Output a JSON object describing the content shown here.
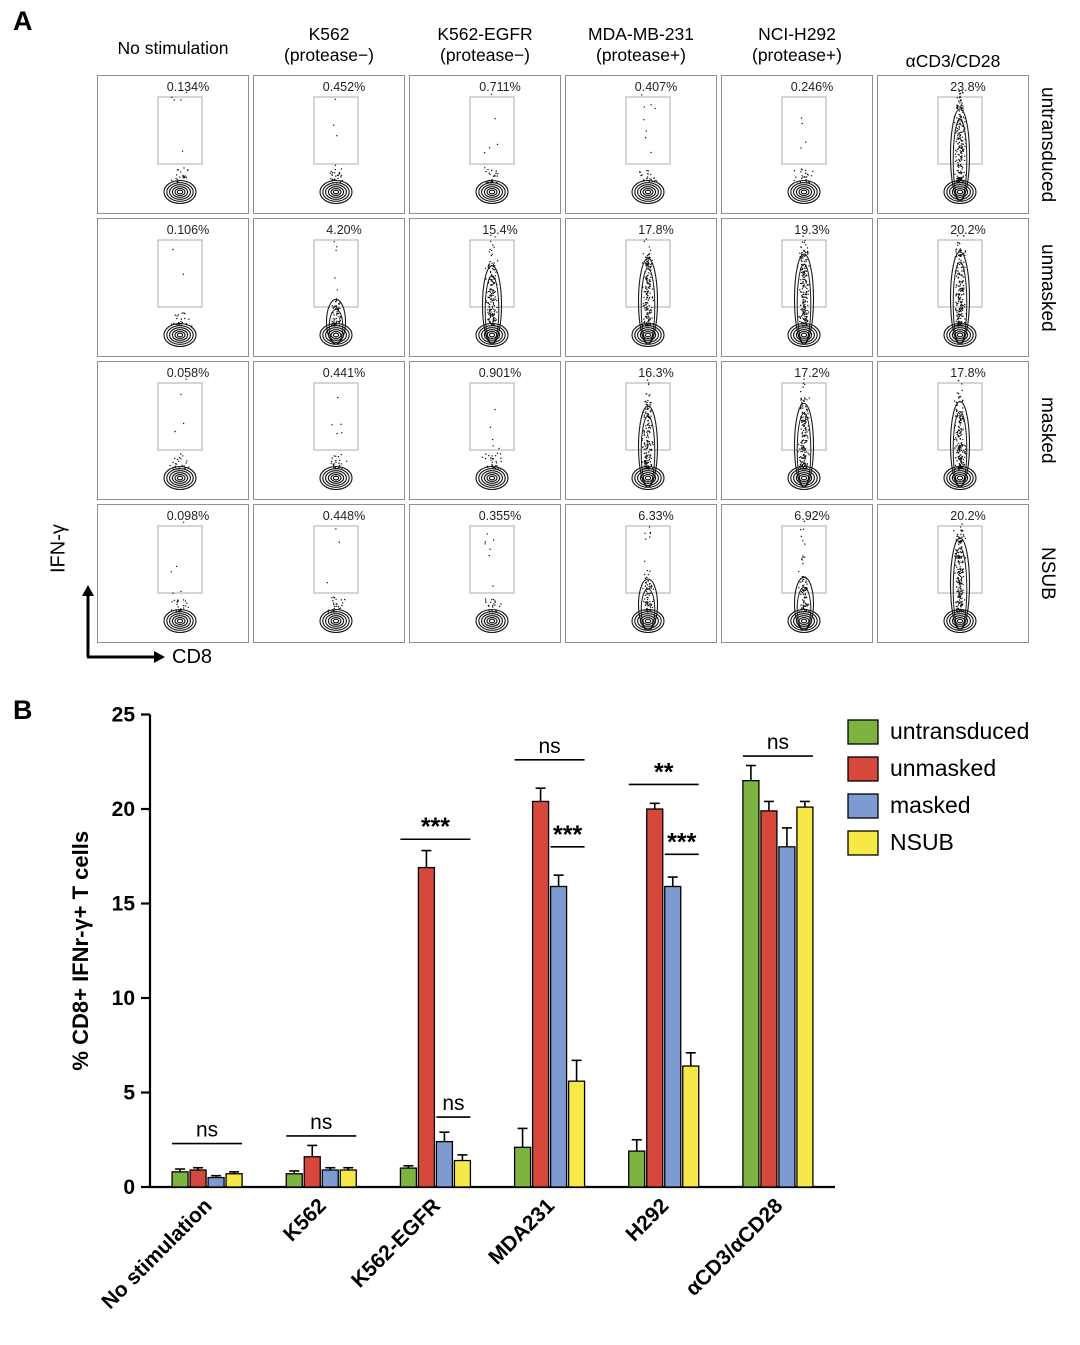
{
  "panel_a": {
    "label": "A",
    "y_axis_label": "IFN-γ",
    "x_axis_label": "CD8",
    "columns": [
      {
        "lines": [
          "No stimulation"
        ],
        "valign": "center"
      },
      {
        "lines": [
          "K562",
          "(protease−)"
        ],
        "valign": "top"
      },
      {
        "lines": [
          "K562-EGFR",
          "(protease−)"
        ],
        "valign": "top"
      },
      {
        "lines": [
          "MDA-MB-231",
          "(protease+)"
        ],
        "valign": "top"
      },
      {
        "lines": [
          "NCI-H292",
          "(protease+)"
        ],
        "valign": "top"
      },
      {
        "lines": [
          "αCD3/CD28"
        ],
        "valign": "bottom"
      }
    ],
    "rows": [
      "untransduced",
      "unmasked",
      "masked",
      "NSUB"
    ],
    "gate_percentages": [
      [
        "0.134%",
        "0.452%",
        "0.711%",
        "0.407%",
        "0.246%",
        "23.8%"
      ],
      [
        "0.106%",
        "4.20%",
        "15.4%",
        "17.8%",
        "19.3%",
        "20.2%"
      ],
      [
        "0.058%",
        "0.441%",
        "0.901%",
        "16.3%",
        "17.2%",
        "17.8%"
      ],
      [
        "0.098%",
        "0.448%",
        "0.355%",
        "6.33%",
        "6.92%",
        "20.2%"
      ]
    ]
  },
  "panel_b": {
    "label": "B"
  },
  "chart_data": {
    "type": "bar",
    "title": "",
    "xlabel": "",
    "ylabel": "% CD8+ IFNr-γ+ T cells",
    "ylim": [
      0,
      25
    ],
    "yticks": [
      0,
      5,
      10,
      15,
      20,
      25
    ],
    "grid": false,
    "legend_position": "top-right",
    "categories": [
      "No stimulation",
      "K562",
      "K562-EGFR",
      "MDA231",
      "H292",
      "αCD3/αCD28"
    ],
    "series": [
      {
        "name": "untransduced",
        "color": "#7db440",
        "values": [
          0.8,
          0.7,
          1.0,
          2.1,
          1.9,
          21.5
        ],
        "errors": [
          0.15,
          0.15,
          0.12,
          1.0,
          0.6,
          0.8
        ]
      },
      {
        "name": "unmasked",
        "color": "#d5483b",
        "values": [
          0.9,
          1.6,
          16.9,
          20.4,
          20.0,
          19.9
        ],
        "errors": [
          0.12,
          0.6,
          0.9,
          0.7,
          0.3,
          0.5
        ]
      },
      {
        "name": "masked",
        "color": "#7d9bd1",
        "values": [
          0.5,
          0.9,
          2.4,
          15.9,
          15.9,
          18.0
        ],
        "errors": [
          0.1,
          0.12,
          0.5,
          0.6,
          0.5,
          1.0
        ]
      },
      {
        "name": "NSUB",
        "color": "#f6e947",
        "values": [
          0.7,
          0.9,
          1.4,
          5.6,
          6.4,
          20.1
        ],
        "errors": [
          0.1,
          0.12,
          0.3,
          1.1,
          0.7,
          0.3
        ]
      }
    ],
    "annotations": [
      {
        "cat": 0,
        "from": 0,
        "to": 3,
        "y": 2.3,
        "label": "ns"
      },
      {
        "cat": 1,
        "from": 0,
        "to": 3,
        "y": 2.7,
        "label": "ns"
      },
      {
        "cat": 2,
        "from": 0,
        "to": 3,
        "y": 18.4,
        "label": "***"
      },
      {
        "cat": 2,
        "from": 2,
        "to": 3,
        "y": 3.7,
        "label": "ns"
      },
      {
        "cat": 3,
        "from": 0,
        "to": 3,
        "y": 22.6,
        "label": "ns"
      },
      {
        "cat": 3,
        "from": 2,
        "to": 3,
        "y": 18.0,
        "label": "***"
      },
      {
        "cat": 4,
        "from": 0,
        "to": 3,
        "y": 21.3,
        "label": "**"
      },
      {
        "cat": 4,
        "from": 2,
        "to": 3,
        "y": 17.6,
        "label": "***"
      },
      {
        "cat": 5,
        "from": 0,
        "to": 3,
        "y": 22.8,
        "label": "ns"
      }
    ]
  }
}
